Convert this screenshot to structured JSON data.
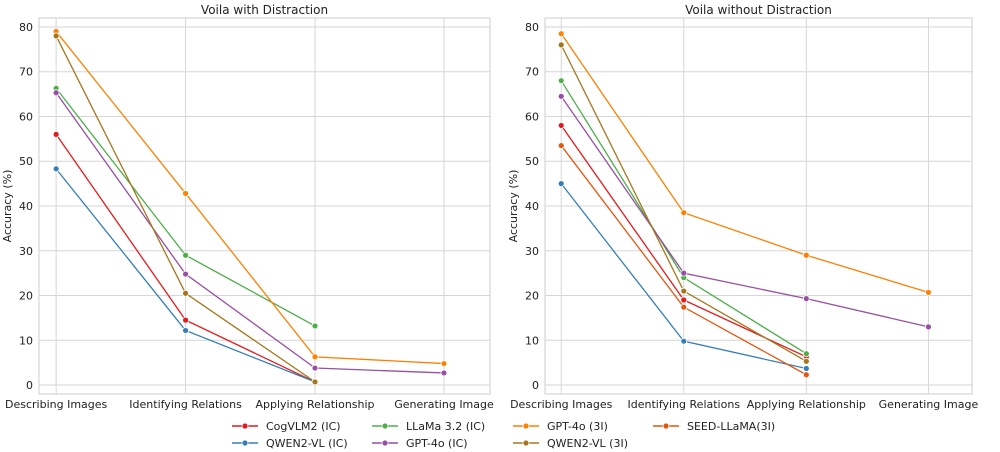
{
  "chart_data": [
    {
      "type": "line",
      "title": "Voila with Distraction",
      "xlabel": "",
      "ylabel": "Accuracy (%)",
      "categories": [
        "Describing Images",
        "Identifying Relations",
        "Applying Relationship",
        "Generating Image"
      ],
      "yticks": [
        0,
        10,
        20,
        30,
        40,
        50,
        60,
        70,
        80
      ],
      "ylim": [
        -2,
        82
      ],
      "grid": true,
      "series": [
        {
          "name": "CogVLM2 (IC)",
          "color": "#e41a1c",
          "values": [
            56,
            14.5,
            0.7,
            null
          ]
        },
        {
          "name": "QWEN2-VL (IC)",
          "color": "#377eb8",
          "values": [
            48.3,
            12.2,
            0.7,
            null
          ]
        },
        {
          "name": "LLaMa 3.2 (IC)",
          "color": "#4daf4a",
          "values": [
            66.3,
            29,
            13.2,
            null
          ]
        },
        {
          "name": "GPT-4o (IC)",
          "color": "#984ea3",
          "values": [
            65.3,
            24.8,
            3.8,
            2.7
          ]
        },
        {
          "name": "GPT-4o (3I)",
          "color": "#ff7f00",
          "values": [
            79,
            42.8,
            6.3,
            4.8
          ]
        },
        {
          "name": "QWEN2-VL (3I)",
          "color": "#a6761d",
          "values": [
            78,
            20.5,
            0.7,
            null
          ]
        }
      ]
    },
    {
      "type": "line",
      "title": "Voila without Distraction",
      "xlabel": "",
      "ylabel": "Accuracy (%)",
      "categories": [
        "Describing Images",
        "Identifying Relations",
        "Applying Relationship",
        "Generating Image"
      ],
      "yticks": [
        0,
        10,
        20,
        30,
        40,
        50,
        60,
        70,
        80
      ],
      "ylim": [
        -2,
        82
      ],
      "grid": true,
      "series": [
        {
          "name": "CogVLM2 (IC)",
          "color": "#e41a1c",
          "values": [
            58,
            19,
            6.3,
            null
          ]
        },
        {
          "name": "QWEN2-VL (IC)",
          "color": "#377eb8",
          "values": [
            45,
            9.8,
            3.7,
            null
          ]
        },
        {
          "name": "LLaMa 3.2 (IC)",
          "color": "#4daf4a",
          "values": [
            68,
            24,
            7,
            null
          ]
        },
        {
          "name": "GPT-4o (IC)",
          "color": "#984ea3",
          "values": [
            64.5,
            25,
            19.3,
            13
          ]
        },
        {
          "name": "GPT-4o (3I)",
          "color": "#ff7f00",
          "values": [
            78.5,
            38.5,
            29,
            20.7
          ]
        },
        {
          "name": "QWEN2-VL (3I)",
          "color": "#a6761d",
          "values": [
            76,
            21,
            5.3,
            null
          ]
        },
        {
          "name": "SEED-LLaMA(3I)",
          "color": "#e6550d",
          "values": [
            53.5,
            17.4,
            2.3,
            null
          ]
        }
      ]
    }
  ],
  "legend": {
    "placement": "bottom-center",
    "entries": [
      {
        "name": "CogVLM2 (IC)",
        "color": "#e41a1c"
      },
      {
        "name": "QWEN2-VL (IC)",
        "color": "#377eb8"
      },
      {
        "name": "LLaMa 3.2 (IC)",
        "color": "#4daf4a"
      },
      {
        "name": "GPT-4o (IC)",
        "color": "#984ea3"
      },
      {
        "name": "GPT-4o (3I)",
        "color": "#ff7f00"
      },
      {
        "name": "QWEN2-VL (3I)",
        "color": "#a6761d"
      },
      {
        "name": "SEED-LLaMA(3I)",
        "color": "#e6550d"
      }
    ]
  }
}
